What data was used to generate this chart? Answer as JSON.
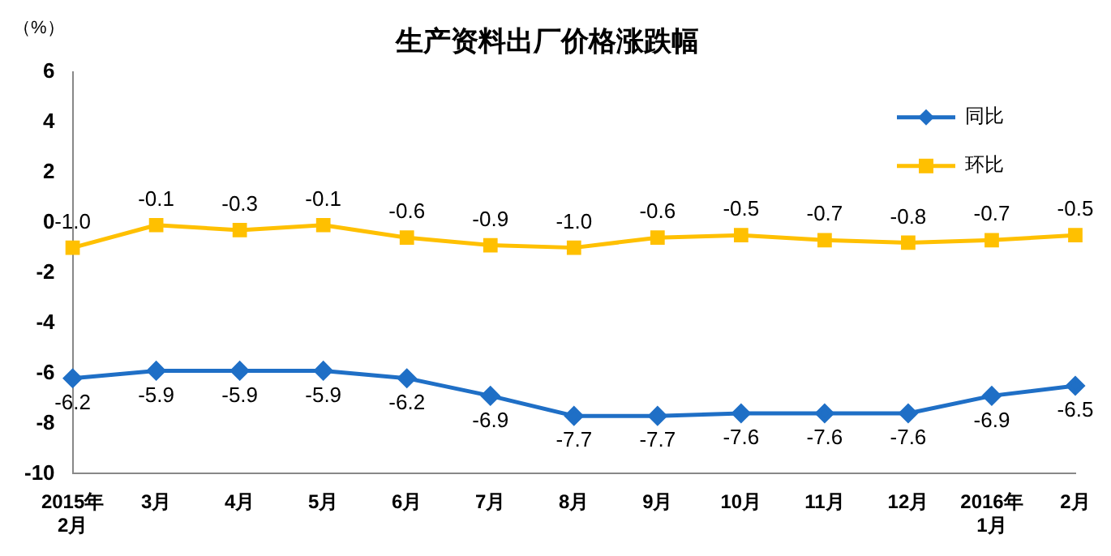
{
  "chart_data": {
    "type": "line",
    "title": "生产资料出厂价格涨跌幅",
    "ylabel": "（%）",
    "categories": [
      "2015年\n2月",
      "3月",
      "4月",
      "5月",
      "6月",
      "7月",
      "8月",
      "9月",
      "10月",
      "11月",
      "12月",
      "2016年\n1月",
      "2月"
    ],
    "series": [
      {
        "name": "同比",
        "color": "#1f6fc6",
        "marker": "diamond",
        "values": [
          -6.2,
          -5.9,
          -5.9,
          -5.9,
          -6.2,
          -6.9,
          -7.7,
          -7.7,
          -7.6,
          -7.6,
          -7.6,
          -6.9,
          -6.5
        ],
        "value_labels": [
          "-6.2",
          "-5.9",
          "-5.9",
          "-5.9",
          "-6.2",
          "-6.9",
          "-7.7",
          "-7.7",
          "-7.6",
          "-7.6",
          "-7.6",
          "-6.9",
          "-6.5"
        ]
      },
      {
        "name": "环比",
        "color": "#ffc000",
        "marker": "square",
        "values": [
          -1.0,
          -0.1,
          -0.3,
          -0.1,
          -0.6,
          -0.9,
          -1.0,
          -0.6,
          -0.5,
          -0.7,
          -0.8,
          -0.7,
          -0.5
        ],
        "value_labels": [
          "-1.0",
          "-0.1",
          "-0.3",
          "-0.1",
          "-0.6",
          "-0.9",
          "-1.0",
          "-0.6",
          "-0.5",
          "-0.7",
          "-0.8",
          "-0.7",
          "-0.5"
        ]
      }
    ],
    "ylim": [
      -10,
      6
    ],
    "yticks": [
      -10,
      -8,
      -6,
      -4,
      -2,
      0,
      2,
      4,
      6
    ],
    "grid": false,
    "legend": "top right"
  }
}
